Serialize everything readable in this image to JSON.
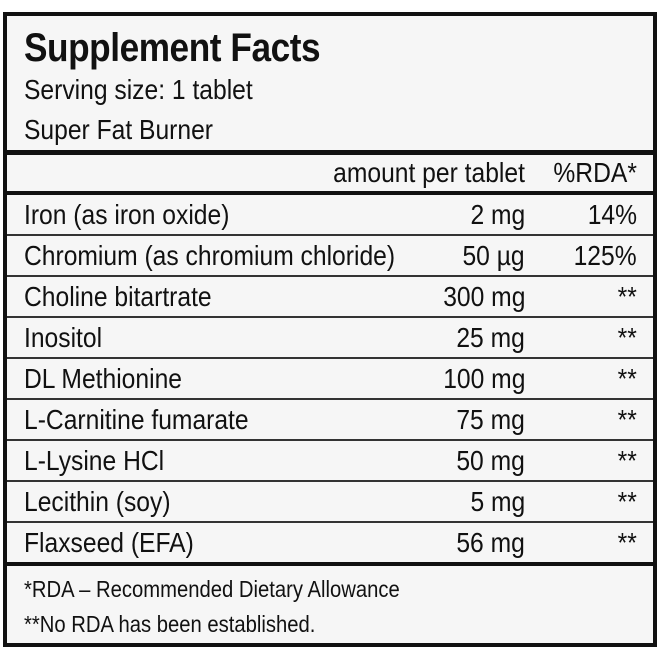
{
  "title": "Supplement Facts",
  "serving_size": "Serving size: 1 tablet",
  "product_name": "Super Fat Burner",
  "header": {
    "amount": "amount per tablet",
    "rda": "%RDA*"
  },
  "rows": [
    {
      "name": "Iron (as iron oxide)",
      "amount": "2 mg",
      "rda": "14%"
    },
    {
      "name": "Chromium (as chromium chloride)",
      "amount": "50 µg",
      "rda": "125%"
    },
    {
      "name": "Choline bitartrate",
      "amount": "300 mg",
      "rda": "**"
    },
    {
      "name": "Inositol",
      "amount": "25 mg",
      "rda": "**"
    },
    {
      "name": "DL Methionine",
      "amount": "100 mg",
      "rda": "**"
    },
    {
      "name": "L-Carnitine fumarate",
      "amount": "75 mg",
      "rda": "**"
    },
    {
      "name": "L-Lysine HCl",
      "amount": "50 mg",
      "rda": "**"
    },
    {
      "name": "Lecithin (soy)",
      "amount": "5 mg",
      "rda": "**"
    },
    {
      "name": "Flaxseed (EFA)",
      "amount": "56 mg",
      "rda": "**"
    }
  ],
  "footnotes": [
    "*RDA – Recommended Dietary Allowance",
    "**No RDA has been established."
  ]
}
